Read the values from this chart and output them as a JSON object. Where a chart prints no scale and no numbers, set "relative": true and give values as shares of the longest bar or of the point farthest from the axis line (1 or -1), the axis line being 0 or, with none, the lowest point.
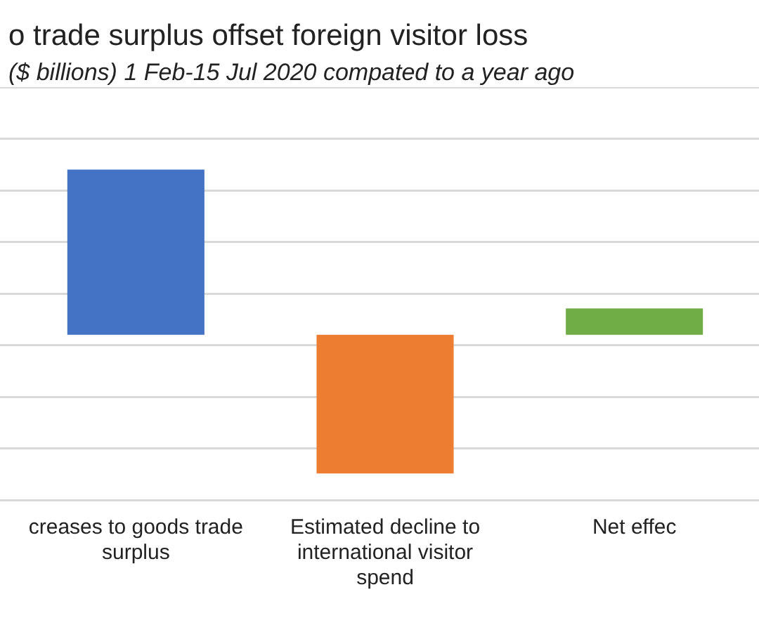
{
  "chart_data": {
    "type": "bar",
    "title": "o trade surplus offset foreign visitor loss",
    "subtitle": "($ billions) 1 Feb-15 Jul 2020 compated to a year ago",
    "categories": [
      "creases to goods trade surplus",
      "Estimated decline to international visitor spend",
      "Net effec"
    ],
    "values": [
      1,
      -0.84,
      0.16
    ],
    "colors": [
      "#4472c4",
      "#ed7d31",
      "#70ad47"
    ],
    "relative": true,
    "grid": "y"
  }
}
